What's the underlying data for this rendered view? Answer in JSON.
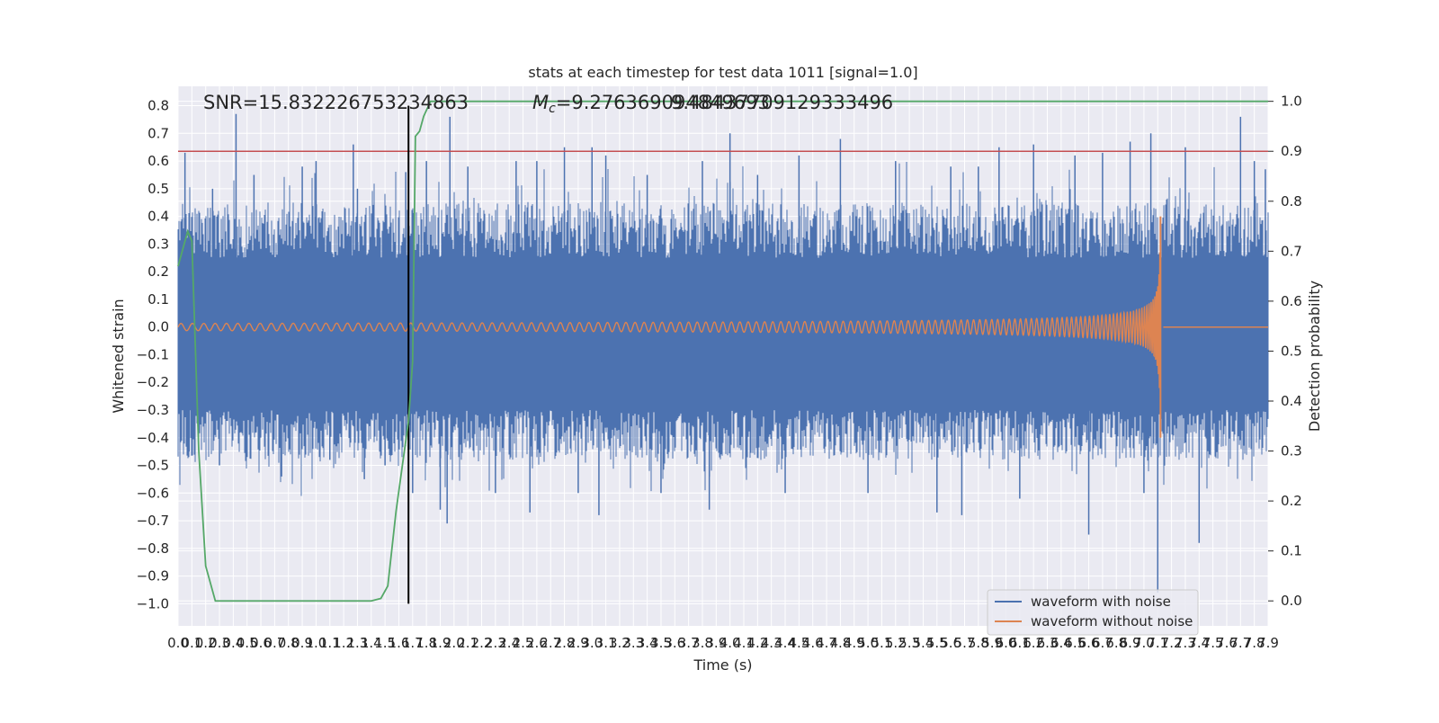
{
  "figure": {
    "title": "stats at each timestep for test data 1011 [signal=1.0]",
    "annotations": {
      "snr": "SNR=15.832226753234863",
      "mc_symbol": "M",
      "mc_subscript": "c",
      "mc_value": "=9.276369094849693",
      "mc_overlap": "9.48437709129333496"
    },
    "xlabel": "Time (s)",
    "ylabel_left": "Whitened strain",
    "ylabel_right": "Detection probability",
    "legend": {
      "items": [
        {
          "label": "waveform with noise",
          "color": "#4c72b0"
        },
        {
          "label": "waveform without noise",
          "color": "#dd8452"
        }
      ]
    }
  },
  "chart_data": {
    "type": "line",
    "xlim": [
      0.0,
      7.9
    ],
    "ylim_left": [
      -1.08,
      0.87
    ],
    "ylim_right": [
      -0.05,
      1.03
    ],
    "x_ticks": [
      "0.0",
      "0.1",
      "0.2",
      "0.3",
      "0.4",
      "0.5",
      "0.6",
      "0.7",
      "0.8",
      "0.9",
      "1.0",
      "1.1",
      "1.2",
      "1.3",
      "1.4",
      "1.5",
      "1.6",
      "1.7",
      "1.8",
      "1.9",
      "2.0",
      "2.1",
      "2.2",
      "2.3",
      "2.4",
      "2.5",
      "2.6",
      "2.7",
      "2.8",
      "2.9",
      "3.0",
      "3.1",
      "3.2",
      "3.3",
      "3.4",
      "3.5",
      "3.6",
      "3.7",
      "3.8",
      "3.9",
      "4.0",
      "4.1",
      "4.2",
      "4.3",
      "4.4",
      "4.5",
      "4.6",
      "4.7",
      "4.8",
      "4.9",
      "5.0",
      "5.1",
      "5.2",
      "5.3",
      "5.4",
      "5.5",
      "5.6",
      "5.7",
      "5.8",
      "5.9",
      "6.0",
      "6.1",
      "6.2",
      "6.3",
      "6.4",
      "6.5",
      "6.6",
      "6.7",
      "6.8",
      "6.9",
      "7.0",
      "7.1",
      "7.2",
      "7.3",
      "7.4",
      "7.5",
      "7.6",
      "7.7",
      "7.8",
      "7.9"
    ],
    "y_ticks_left": [
      "−1.0",
      "−0.9",
      "−0.8",
      "−0.7",
      "−0.6",
      "−0.5",
      "−0.4",
      "−0.3",
      "−0.2",
      "−0.1",
      "0.0",
      "0.1",
      "0.2",
      "0.3",
      "0.4",
      "0.5",
      "0.6",
      "0.7",
      "0.8"
    ],
    "y_ticks_right": [
      "0.0",
      "0.1",
      "0.2",
      "0.3",
      "0.4",
      "0.5",
      "0.6",
      "0.7",
      "0.8",
      "0.9",
      "1.0"
    ],
    "grid": true,
    "legend_position": "lower-right",
    "series": [
      {
        "name": "waveform with noise",
        "axis": "left",
        "color": "#4c72b0",
        "noise_band": [
          -0.3,
          0.25
        ],
        "spikes": [
          [
            0.05,
            0.63
          ],
          [
            0.08,
            -0.45
          ],
          [
            0.25,
            0.5
          ],
          [
            0.3,
            -0.5
          ],
          [
            0.42,
            0.77
          ],
          [
            0.5,
            -0.47
          ],
          [
            0.55,
            0.55
          ],
          [
            0.75,
            -0.54
          ],
          [
            0.9,
            0.58
          ],
          [
            1.0,
            0.6
          ],
          [
            1.1,
            -0.48
          ],
          [
            1.3,
            0.5
          ],
          [
            1.27,
            0.66
          ],
          [
            1.35,
            -0.55
          ],
          [
            1.5,
            -0.5
          ],
          [
            1.65,
            0.56
          ],
          [
            1.7,
            -0.6
          ],
          [
            1.8,
            0.6
          ],
          [
            1.9,
            -0.66
          ],
          [
            1.97,
            0.76
          ],
          [
            1.95,
            -0.71
          ],
          [
            2.1,
            0.58
          ],
          [
            2.3,
            -0.6
          ],
          [
            2.45,
            0.6
          ],
          [
            2.55,
            -0.67
          ],
          [
            2.6,
            0.6
          ],
          [
            2.8,
            0.65
          ],
          [
            2.9,
            -0.6
          ],
          [
            3.0,
            0.65
          ],
          [
            3.05,
            -0.68
          ],
          [
            3.1,
            0.62
          ],
          [
            3.4,
            0.55
          ],
          [
            3.5,
            -0.6
          ],
          [
            3.8,
            0.6
          ],
          [
            3.85,
            -0.66
          ],
          [
            4.0,
            0.7
          ],
          [
            4.2,
            0.55
          ],
          [
            4.4,
            -0.6
          ],
          [
            4.5,
            0.62
          ],
          [
            4.8,
            0.68
          ],
          [
            5.0,
            -0.6
          ],
          [
            5.2,
            0.6
          ],
          [
            5.5,
            -0.67
          ],
          [
            5.6,
            0.58
          ],
          [
            5.68,
            -0.68
          ],
          [
            5.8,
            0.58
          ],
          [
            5.95,
            0.65
          ],
          [
            6.1,
            -0.62
          ],
          [
            6.2,
            0.66
          ],
          [
            6.5,
            0.62
          ],
          [
            6.6,
            -0.75
          ],
          [
            6.7,
            0.63
          ],
          [
            6.9,
            0.67
          ],
          [
            7.0,
            -0.6
          ],
          [
            7.05,
            0.7
          ],
          [
            7.1,
            -0.96
          ],
          [
            7.3,
            0.65
          ],
          [
            7.4,
            -0.78
          ],
          [
            7.7,
            0.76
          ],
          [
            7.8,
            0.6
          ],
          [
            7.88,
            0.57
          ]
        ]
      },
      {
        "name": "waveform without noise",
        "axis": "left",
        "color": "#dd8452",
        "cycles_per_second_at_start": 12,
        "amplitude_at_start": 0.013,
        "peak_amplitude": 0.4,
        "merger_time": 7.12,
        "ringdown_end": 7.14,
        "post_merger_level": 0.0
      },
      {
        "name": "",
        "axis": "right",
        "color": "#55a868",
        "x": [
          0.0,
          0.05,
          0.07,
          0.1,
          0.15,
          0.2,
          0.27,
          0.3,
          1.3,
          1.4,
          1.47,
          1.52,
          1.58,
          1.63,
          1.67,
          1.7,
          1.72,
          1.75,
          1.78,
          1.83,
          7.9
        ],
        "y": [
          0.67,
          0.72,
          0.74,
          0.72,
          0.3,
          0.07,
          0.0,
          0.0,
          0.0,
          0.0,
          0.005,
          0.03,
          0.18,
          0.28,
          0.36,
          0.48,
          0.93,
          0.94,
          0.97,
          1.0,
          1.0
        ]
      }
    ],
    "reference_lines": [
      {
        "kind": "horizontal",
        "axis": "right",
        "y": 0.9,
        "color": "#c44e52"
      },
      {
        "kind": "vertical",
        "x": 1.67,
        "y_range": [
          -1.0,
          0.8
        ],
        "color": "#000000"
      }
    ]
  }
}
